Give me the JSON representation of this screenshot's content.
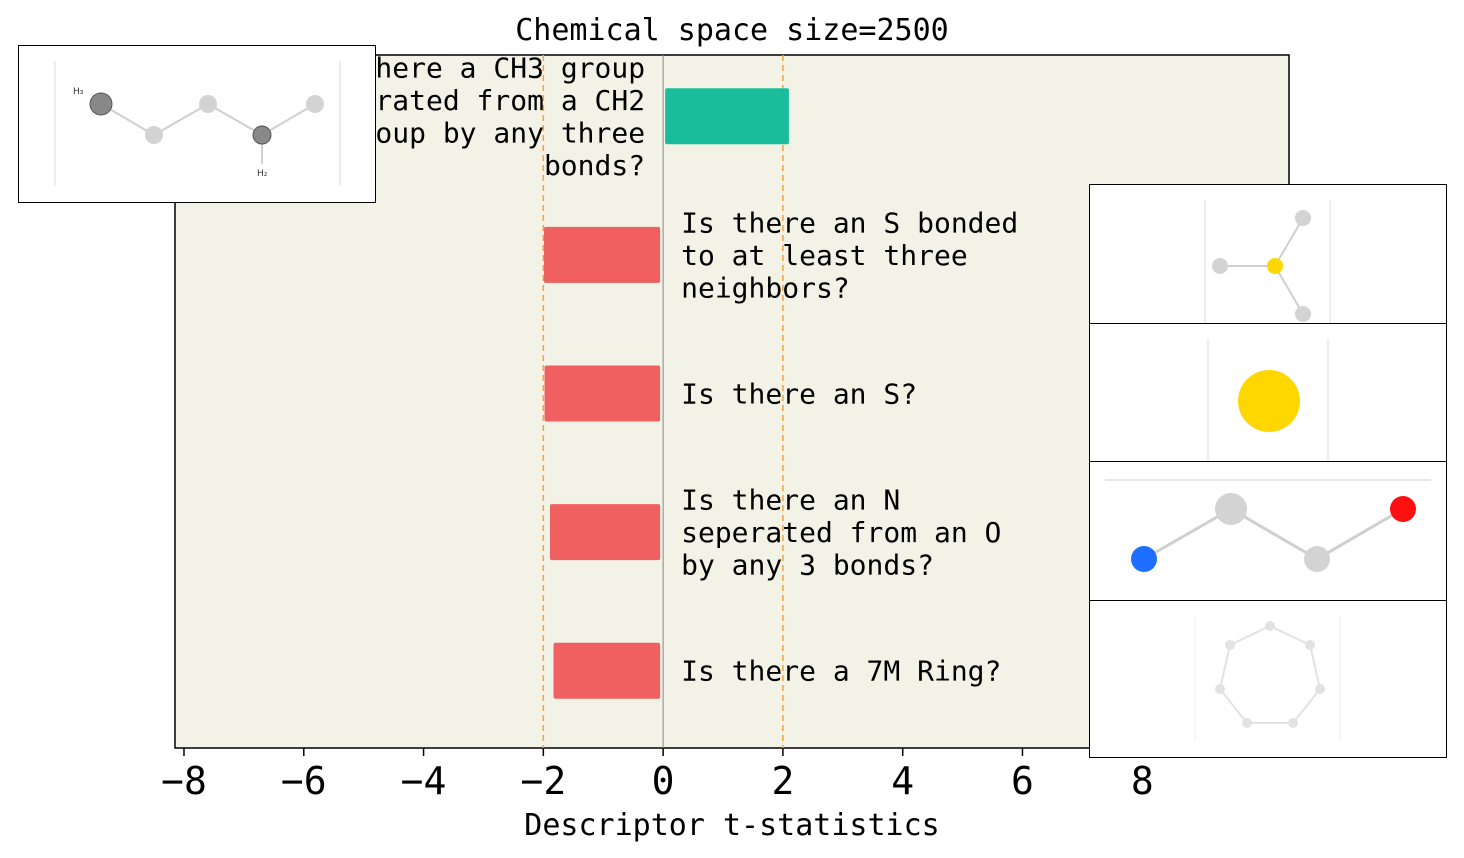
{
  "chart_data": {
    "type": "bar",
    "orientation": "horizontal",
    "title": "Chemical space size=2500",
    "xlabel": "Descriptor t-statistics",
    "xlim": [
      -8.15,
      10.45
    ],
    "xticks": [
      -8,
      -6,
      -4,
      -2,
      0,
      2,
      4,
      6,
      8
    ],
    "xtick_labels": [
      "−8",
      "−6",
      "−4",
      "−2",
      "0",
      "2",
      "4",
      "6",
      "8"
    ],
    "threshold_lines": [
      -2,
      2
    ],
    "categories": [
      "Is there a CH3 group seperated from a CH2 group by any three bonds?",
      "Is there an S bonded to at least three neighbors?",
      "Is there an S?",
      "Is there an N seperated from an O by any 3 bonds?",
      "Is there a 7M Ring?"
    ],
    "values": [
      2.1,
      -1.99,
      -1.98,
      -1.89,
      -1.83
    ],
    "label_lines": [
      [
        "Is there a CH3 group",
        "seperated from a CH2",
        "group by any three",
        "bonds?"
      ],
      [
        "Is there an S bonded",
        "to at least three",
        "neighbors?"
      ],
      [
        "Is there an S?"
      ],
      [
        "Is there an N",
        "seperated from an O",
        "by any 3 bonds?"
      ],
      [
        "Is there a 7M Ring?"
      ]
    ],
    "colors": {
      "positive": "#1abc9c",
      "negative": "#f06060",
      "background": "#f3f2e7",
      "threshold": "#f2a33a",
      "zero_line": "#888888"
    },
    "grid": false
  },
  "insets": [
    {
      "name": "molecule-ch3-ch2",
      "atom_labels": [
        "H₃",
        "H₂"
      ]
    },
    {
      "name": "molecule-s-three-neighbors"
    },
    {
      "name": "molecule-sulfur-atom"
    },
    {
      "name": "molecule-n-o-three-bonds"
    },
    {
      "name": "molecule-7-ring"
    }
  ]
}
